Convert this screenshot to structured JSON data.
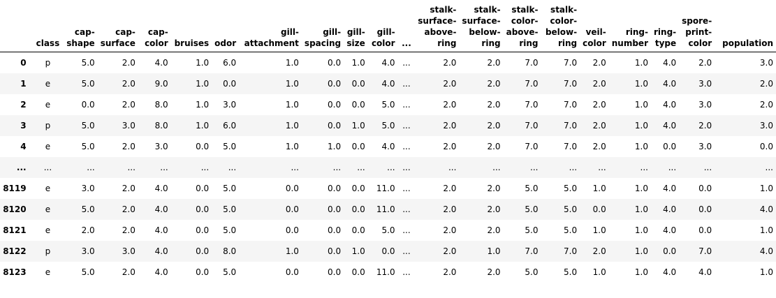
{
  "table": {
    "columns": [
      {
        "lines": [
          "class"
        ],
        "align": "right"
      },
      {
        "lines": [
          "cap-",
          "shape"
        ]
      },
      {
        "lines": [
          "cap-",
          "surface"
        ]
      },
      {
        "lines": [
          "cap-",
          "color"
        ]
      },
      {
        "lines": [
          "bruises"
        ]
      },
      {
        "lines": [
          "odor"
        ]
      },
      {
        "lines": [
          "gill-",
          "attachment"
        ]
      },
      {
        "lines": [
          "gill-",
          "spacing"
        ]
      },
      {
        "lines": [
          "gill-",
          "size"
        ]
      },
      {
        "lines": [
          "gill-",
          "color"
        ]
      },
      {
        "lines": [
          "..."
        ]
      },
      {
        "lines": [
          "stalk-",
          "surface-",
          "above-",
          "ring"
        ]
      },
      {
        "lines": [
          "stalk-",
          "surface-",
          "below-",
          "ring"
        ]
      },
      {
        "lines": [
          "stalk-",
          "color-",
          "above-",
          "ring"
        ]
      },
      {
        "lines": [
          "stalk-",
          "color-",
          "below-",
          "ring"
        ]
      },
      {
        "lines": [
          "veil-",
          "color"
        ]
      },
      {
        "lines": [
          "ring-",
          "number"
        ]
      },
      {
        "lines": [
          "ring-",
          "type"
        ]
      },
      {
        "lines": [
          "spore-",
          "print-",
          "color"
        ]
      },
      {
        "lines": [
          "population"
        ]
      }
    ],
    "rows": [
      {
        "index": "0",
        "cells": [
          "p",
          "5.0",
          "2.0",
          "4.0",
          "1.0",
          "6.0",
          "1.0",
          "0.0",
          "1.0",
          "4.0",
          "...",
          "2.0",
          "2.0",
          "7.0",
          "7.0",
          "2.0",
          "1.0",
          "4.0",
          "2.0",
          "3.0"
        ]
      },
      {
        "index": "1",
        "cells": [
          "e",
          "5.0",
          "2.0",
          "9.0",
          "1.0",
          "0.0",
          "1.0",
          "0.0",
          "0.0",
          "4.0",
          "...",
          "2.0",
          "2.0",
          "7.0",
          "7.0",
          "2.0",
          "1.0",
          "4.0",
          "3.0",
          "2.0"
        ]
      },
      {
        "index": "2",
        "cells": [
          "e",
          "0.0",
          "2.0",
          "8.0",
          "1.0",
          "3.0",
          "1.0",
          "0.0",
          "0.0",
          "5.0",
          "...",
          "2.0",
          "2.0",
          "7.0",
          "7.0",
          "2.0",
          "1.0",
          "4.0",
          "3.0",
          "2.0"
        ]
      },
      {
        "index": "3",
        "cells": [
          "p",
          "5.0",
          "3.0",
          "8.0",
          "1.0",
          "6.0",
          "1.0",
          "0.0",
          "1.0",
          "5.0",
          "...",
          "2.0",
          "2.0",
          "7.0",
          "7.0",
          "2.0",
          "1.0",
          "4.0",
          "2.0",
          "3.0"
        ]
      },
      {
        "index": "4",
        "cells": [
          "e",
          "5.0",
          "2.0",
          "3.0",
          "0.0",
          "5.0",
          "1.0",
          "1.0",
          "0.0",
          "4.0",
          "...",
          "2.0",
          "2.0",
          "7.0",
          "7.0",
          "2.0",
          "1.0",
          "0.0",
          "3.0",
          "0.0"
        ]
      },
      {
        "index": "...",
        "cells": [
          "...",
          "...",
          "...",
          "...",
          "...",
          "...",
          "...",
          "...",
          "...",
          "...",
          "...",
          "...",
          "...",
          "...",
          "...",
          "...",
          "...",
          "...",
          "...",
          "..."
        ]
      },
      {
        "index": "8119",
        "cells": [
          "e",
          "3.0",
          "2.0",
          "4.0",
          "0.0",
          "5.0",
          "0.0",
          "0.0",
          "0.0",
          "11.0",
          "...",
          "2.0",
          "2.0",
          "5.0",
          "5.0",
          "1.0",
          "1.0",
          "4.0",
          "0.0",
          "1.0"
        ]
      },
      {
        "index": "8120",
        "cells": [
          "e",
          "5.0",
          "2.0",
          "4.0",
          "0.0",
          "5.0",
          "0.0",
          "0.0",
          "0.0",
          "11.0",
          "...",
          "2.0",
          "2.0",
          "5.0",
          "5.0",
          "0.0",
          "1.0",
          "4.0",
          "0.0",
          "4.0"
        ]
      },
      {
        "index": "8121",
        "cells": [
          "e",
          "2.0",
          "2.0",
          "4.0",
          "0.0",
          "5.0",
          "0.0",
          "0.0",
          "0.0",
          "5.0",
          "...",
          "2.0",
          "2.0",
          "5.0",
          "5.0",
          "1.0",
          "1.0",
          "4.0",
          "0.0",
          "1.0"
        ]
      },
      {
        "index": "8122",
        "cells": [
          "p",
          "3.0",
          "3.0",
          "4.0",
          "0.0",
          "8.0",
          "1.0",
          "0.0",
          "1.0",
          "0.0",
          "...",
          "2.0",
          "1.0",
          "7.0",
          "7.0",
          "2.0",
          "1.0",
          "0.0",
          "7.0",
          "4.0"
        ]
      },
      {
        "index": "8123",
        "cells": [
          "e",
          "5.0",
          "2.0",
          "4.0",
          "0.0",
          "5.0",
          "0.0",
          "0.0",
          "0.0",
          "11.0",
          "...",
          "2.0",
          "2.0",
          "5.0",
          "5.0",
          "1.0",
          "1.0",
          "4.0",
          "4.0",
          "1.0"
        ]
      }
    ]
  }
}
